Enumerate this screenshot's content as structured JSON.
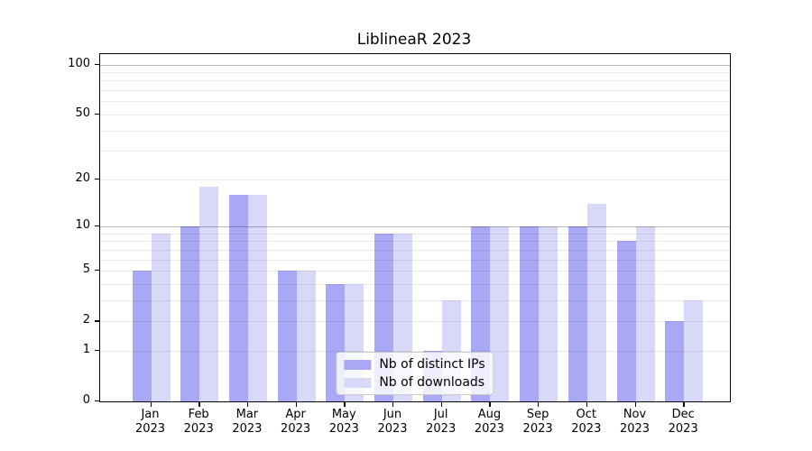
{
  "figure": {
    "background": "#ffffff"
  },
  "chart_data": {
    "type": "bar",
    "title": "LiblineaR 2023",
    "categories": [
      "Jan",
      "Feb",
      "Mar",
      "Apr",
      "May",
      "Jun",
      "Jul",
      "Aug",
      "Sep",
      "Oct",
      "Nov",
      "Dec"
    ],
    "x_tick_line2": "2023",
    "series": [
      {
        "key": "ips",
        "name": "Nb of distinct IPs",
        "color": "#a8a8f5",
        "values": [
          5,
          10,
          16,
          5,
          4,
          9,
          1,
          10,
          10,
          10,
          8,
          2
        ]
      },
      {
        "key": "downloads",
        "name": "Nb of downloads",
        "color": "#d8d8f8",
        "values": [
          9,
          18,
          16,
          5,
          4,
          9,
          3,
          10,
          10,
          14,
          10,
          3
        ]
      }
    ],
    "xlabel": "",
    "ylabel": "",
    "yscale": "log10(1+x)",
    "ylim": [
      0,
      115
    ],
    "y_ticks": [
      0,
      1,
      2,
      5,
      10,
      20,
      50,
      100
    ],
    "y_tick_labels": [
      "0",
      "1",
      "2",
      "5",
      "10",
      "20",
      "50",
      "100"
    ],
    "major_gridlines": [
      10,
      100
    ],
    "minor_gridlines": [
      1,
      2,
      3,
      4,
      5,
      6,
      7,
      8,
      9,
      20,
      30,
      40,
      50,
      60,
      70,
      80,
      90
    ],
    "grid": true,
    "legend_position": "lower center inside plot"
  }
}
